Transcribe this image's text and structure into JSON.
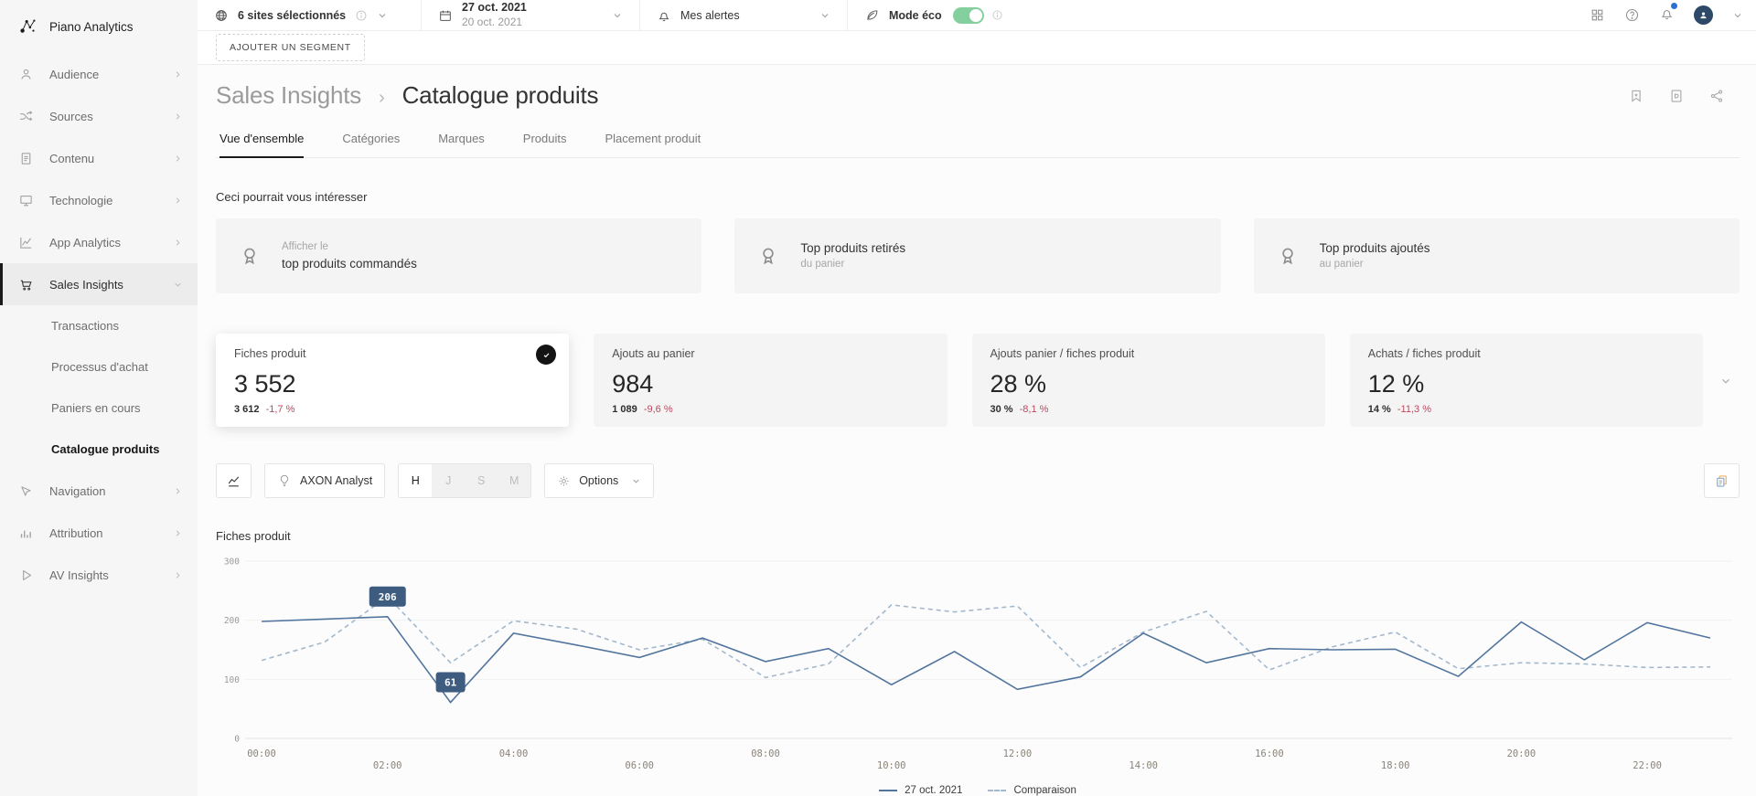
{
  "brand": {
    "name": "Piano Analytics"
  },
  "sidebar": {
    "items": [
      {
        "label": "Audience"
      },
      {
        "label": "Sources"
      },
      {
        "label": "Contenu"
      },
      {
        "label": "Technologie"
      },
      {
        "label": "App Analytics"
      },
      {
        "label": "Sales Insights"
      },
      {
        "label": "Navigation"
      },
      {
        "label": "Attribution"
      },
      {
        "label": "AV Insights"
      }
    ],
    "sales_subitems": [
      {
        "label": "Transactions"
      },
      {
        "label": "Processus d'achat"
      },
      {
        "label": "Paniers en cours"
      },
      {
        "label": "Catalogue produits"
      }
    ]
  },
  "topbar": {
    "sites_label": "6 sites sélectionnés",
    "date_primary": "27 oct. 2021",
    "date_secondary": "20 oct. 2021",
    "alerts_label": "Mes alertes",
    "eco_label": "Mode éco",
    "eco_on": true
  },
  "segment_button_label": "AJOUTER UN SEGMENT",
  "breadcrumb": {
    "parent": "Sales Insights",
    "separator": "›",
    "current": "Catalogue produits"
  },
  "tabs": [
    {
      "label": "Vue d'ensemble",
      "active": true
    },
    {
      "label": "Catégories",
      "active": false
    },
    {
      "label": "Marques",
      "active": false
    },
    {
      "label": "Produits",
      "active": false
    },
    {
      "label": "Placement produit",
      "active": false
    }
  ],
  "suggestions": {
    "title": "Ceci pourrait vous intéresser",
    "cards": [
      {
        "line1": "Afficher le",
        "line2": "top produits commandés"
      },
      {
        "line1": "Top produits retirés",
        "line2": "du panier"
      },
      {
        "line1": "Top produits ajoutés",
        "line2": "au panier"
      }
    ]
  },
  "kpis": [
    {
      "label": "Fiches produit",
      "value": "3 552",
      "previous": "3 612",
      "delta": "-1,7 %",
      "selected": true
    },
    {
      "label": "Ajouts au panier",
      "value": "984",
      "previous": "1 089",
      "delta": "-9,6 %",
      "selected": false
    },
    {
      "label": "Ajouts panier / fiches produit",
      "value": "28 %",
      "previous": "30 %",
      "delta": "-8,1 %",
      "selected": false
    },
    {
      "label": "Achats / fiches produit",
      "value": "12 %",
      "previous": "14 %",
      "delta": "-11,3 %",
      "selected": false
    }
  ],
  "toolbar": {
    "axon_label": "AXON Analyst",
    "granularities": {
      "h": "H",
      "j": "J",
      "s": "S",
      "m": "M"
    },
    "granularity_active": "H",
    "options_label": "Options"
  },
  "chart_data": {
    "type": "line",
    "title": "Fiches produit",
    "x": [
      "00:00",
      "01:00",
      "02:00",
      "03:00",
      "04:00",
      "05:00",
      "06:00",
      "07:00",
      "08:00",
      "09:00",
      "10:00",
      "11:00",
      "12:00",
      "13:00",
      "14:00",
      "15:00",
      "16:00",
      "17:00",
      "18:00",
      "19:00",
      "20:00",
      "21:00",
      "22:00",
      "23:00"
    ],
    "x_tick_every": 2,
    "ylim": [
      0,
      300
    ],
    "yticks": [
      0,
      100,
      200,
      300
    ],
    "grid": true,
    "series": [
      {
        "name": "27 oct. 2021",
        "style": "solid",
        "color": "#52759e",
        "values": [
          198,
          202,
          206,
          61,
          178,
          158,
          137,
          170,
          130,
          152,
          91,
          147,
          83,
          104,
          178,
          128,
          152,
          150,
          151,
          105,
          197,
          133,
          196,
          170
        ]
      },
      {
        "name": "Comparaison",
        "style": "dashed",
        "color": "#a3b8cd",
        "values": [
          132,
          163,
          240,
          128,
          199,
          185,
          150,
          168,
          103,
          126,
          226,
          214,
          224,
          120,
          180,
          215,
          116,
          155,
          180,
          118,
          128,
          126,
          120,
          121
        ]
      }
    ],
    "point_labels": [
      {
        "series": 0,
        "index": 2,
        "text": "206"
      },
      {
        "series": 0,
        "index": 3,
        "text": "61"
      }
    ],
    "legend_position": "bottom-center",
    "badge_color": "#3d5c80"
  }
}
